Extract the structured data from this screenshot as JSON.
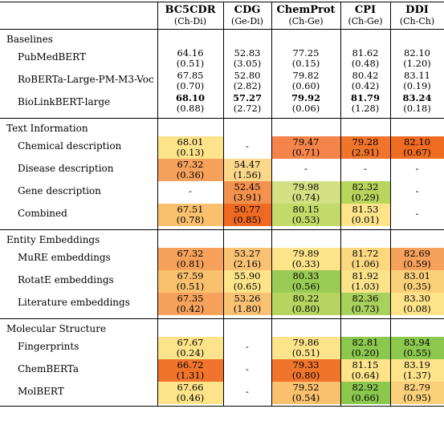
{
  "columns": [
    {
      "name": "BC5CDR",
      "type": "(Ch-Di)",
      "bold": true
    },
    {
      "name": "CDG",
      "type": "(Ge-Di)",
      "bold": true
    },
    {
      "name": "ChemProt",
      "type": "(Ch-Ge)",
      "bold": true
    },
    {
      "name": "CPI",
      "type": "(Ch-Ge)",
      "bold": true
    },
    {
      "name": "DDI",
      "type": "(Ch-Ch)",
      "bold": true
    }
  ],
  "sections": [
    {
      "title": "Baselines",
      "rows": [
        {
          "label": "PubMedBERT",
          "cells": [
            {
              "v": "64.16",
              "s": "(0.51)",
              "c": ""
            },
            {
              "v": "52.83",
              "s": "(3.05)",
              "c": ""
            },
            {
              "v": "77.25",
              "s": "(0.15)",
              "c": ""
            },
            {
              "v": "81.62",
              "s": "(0.48)",
              "c": ""
            },
            {
              "v": "82.10",
              "s": "(1.20)",
              "c": ""
            }
          ]
        },
        {
          "label": "RoBERTa-Large-PM-M3-Voc",
          "cells": [
            {
              "v": "67.85",
              "s": "(0.70)",
              "c": ""
            },
            {
              "v": "52.80",
              "s": "(2.82)",
              "c": ""
            },
            {
              "v": "79.82",
              "s": "(0.60)",
              "c": ""
            },
            {
              "v": "80.42",
              "s": "(0.42)",
              "c": ""
            },
            {
              "v": "83.11",
              "s": "(0.19)",
              "c": ""
            }
          ]
        },
        {
          "label": "BioLinkBERT-large",
          "cells": [
            {
              "v": "68.10",
              "s": "(0.88)",
              "c": "",
              "b": true
            },
            {
              "v": "57.27",
              "s": "(2.72)",
              "c": "",
              "b": true
            },
            {
              "v": "79.92",
              "s": "(0.06)",
              "c": "",
              "b": true
            },
            {
              "v": "81.79",
              "s": "(1.28)",
              "c": "",
              "b": true
            },
            {
              "v": "83.24",
              "s": "(0.18)",
              "c": "",
              "b": true
            }
          ]
        }
      ]
    },
    {
      "title": "Text Information",
      "rows": [
        {
          "label": "Chemical description",
          "cells": [
            {
              "v": "68.01",
              "s": "(0.13)",
              "c": "#fde48a"
            },
            {
              "v": "-",
              "s": "",
              "c": ""
            },
            {
              "v": "79.47",
              "s": "(0.71)",
              "c": "#f5844a"
            },
            {
              "v": "79.28",
              "s": "(2.91)",
              "c": "#f0742c"
            },
            {
              "v": "82.10",
              "s": "(0.67)",
              "c": "#ef6c23"
            }
          ]
        },
        {
          "label": "Disease description",
          "cells": [
            {
              "v": "67.32",
              "s": "(0.36)",
              "c": "#f6a25c"
            },
            {
              "v": "54.47",
              "s": "(1.56)",
              "c": "#fbd78a"
            },
            {
              "v": "-",
              "s": "",
              "c": ""
            },
            {
              "v": "-",
              "s": "",
              "c": ""
            },
            {
              "v": "-",
              "s": "",
              "c": ""
            }
          ]
        },
        {
          "label": "Gene description",
          "cells": [
            {
              "v": "-",
              "s": "",
              "c": ""
            },
            {
              "v": "52.45",
              "s": "(3.91)",
              "c": "#f3924f"
            },
            {
              "v": "79.98",
              "s": "(0.74)",
              "c": "#d3e084"
            },
            {
              "v": "82.32",
              "s": "(0.29)",
              "c": "#b8d65c"
            },
            {
              "v": "-",
              "s": "",
              "c": ""
            }
          ]
        },
        {
          "label": "Combined",
          "cells": [
            {
              "v": "67.51",
              "s": "(0.78)",
              "c": "#f9c16e"
            },
            {
              "v": "50.77",
              "s": "(0.85)",
              "c": "#ee6a22"
            },
            {
              "v": "80.15",
              "s": "(0.53)",
              "c": "#c3da6a"
            },
            {
              "v": "81.53",
              "s": "(0.01)",
              "c": "#fde48a"
            },
            {
              "v": "-",
              "s": "",
              "c": ""
            }
          ]
        }
      ]
    },
    {
      "title": "Entity Embeddings",
      "rows": [
        {
          "label": "MuRE embeddings",
          "cells": [
            {
              "v": "67.32",
              "s": "(0.81)",
              "c": "#f6a25c"
            },
            {
              "v": "53.27",
              "s": "(2.16)",
              "c": "#f9c173"
            },
            {
              "v": "79.89",
              "s": "(0.33)",
              "c": "#fde48a"
            },
            {
              "v": "81.72",
              "s": "(1.06)",
              "c": "#fbd780"
            },
            {
              "v": "82.69",
              "s": "(0.59)",
              "c": "#f6a25c"
            }
          ]
        },
        {
          "label": "RotatE embeddings",
          "cells": [
            {
              "v": "67.59",
              "s": "(0.51)",
              "c": "#f9c16e"
            },
            {
              "v": "55.90",
              "s": "(0.65)",
              "c": "#fde48a"
            },
            {
              "v": "80.33",
              "s": "(0.56)",
              "c": "#9acc55"
            },
            {
              "v": "81.92",
              "s": "(1.03)",
              "c": "#fbe38a"
            },
            {
              "v": "83.01",
              "s": "(0.35)",
              "c": "#fbd07a"
            }
          ]
        },
        {
          "label": "Literature embeddings",
          "cells": [
            {
              "v": "67.35",
              "s": "(0.42)",
              "c": "#f6a25c"
            },
            {
              "v": "53.26",
              "s": "(1.80)",
              "c": "#f9c173"
            },
            {
              "v": "80.22",
              "s": "(0.80)",
              "c": "#b5d560"
            },
            {
              "v": "82.36",
              "s": "(0.73)",
              "c": "#a8d05c"
            },
            {
              "v": "83.30",
              "s": "(0.08)",
              "c": "#fde48a"
            }
          ]
        }
      ]
    },
    {
      "title": "Molecular Structure",
      "rows": [
        {
          "label": "Fingerprints",
          "cells": [
            {
              "v": "67.67",
              "s": "(0.24)",
              "c": "#fde48a"
            },
            {
              "v": "-",
              "s": "",
              "c": ""
            },
            {
              "v": "79.86",
              "s": "(0.51)",
              "c": "#fde48a"
            },
            {
              "v": "82.81",
              "s": "(0.20)",
              "c": "#8cc84e"
            },
            {
              "v": "83.94",
              "s": "(0.55)",
              "c": "#8cc84e"
            }
          ]
        },
        {
          "label": "ChemBERTa",
          "cells": [
            {
              "v": "66.72",
              "s": "(1.31)",
              "c": "#f0742c"
            },
            {
              "v": "-",
              "s": "",
              "c": ""
            },
            {
              "v": "79.33",
              "s": "(0.80)",
              "c": "#f0742c"
            },
            {
              "v": "81.15",
              "s": "(0.64)",
              "c": "#fde48a"
            },
            {
              "v": "83.19",
              "s": "(1.37)",
              "c": "#fde48a"
            }
          ]
        },
        {
          "label": "MolBERT",
          "cells": [
            {
              "v": "67.66",
              "s": "(0.46)",
              "c": "#fde48a"
            },
            {
              "v": "-",
              "s": "",
              "c": ""
            },
            {
              "v": "79.52",
              "s": "(0.54)",
              "c": "#f9c16e"
            },
            {
              "v": "82.92",
              "s": "(0.66)",
              "c": "#8cc84e"
            },
            {
              "v": "82.79",
              "s": "(0.95)",
              "c": "#fbd07a"
            }
          ]
        }
      ]
    }
  ]
}
